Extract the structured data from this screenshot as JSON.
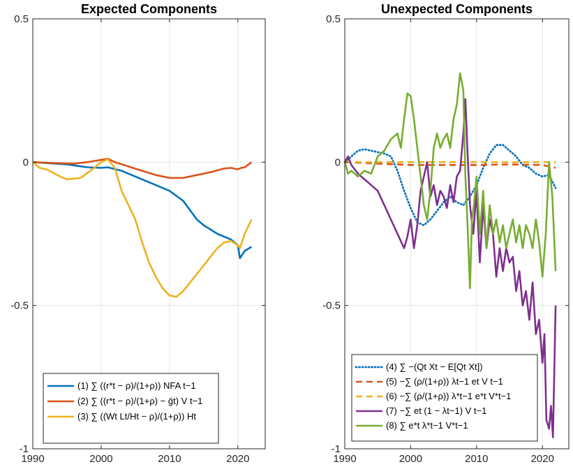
{
  "chart_data": [
    {
      "type": "line",
      "title": "Expected Components",
      "xlabel": "",
      "ylabel": "",
      "xlim": [
        1990,
        2024
      ],
      "ylim": [
        -1,
        0.5
      ],
      "xticks": [
        "1990",
        "2000",
        "2010",
        "2020"
      ],
      "yticks": [
        "0.5",
        "0",
        "-0.5",
        "-1"
      ],
      "grid": true,
      "legend_position": "bottom-left",
      "series": [
        {
          "name": "(1) ∑ ((r*t − ρ)/(1+ρ)) NFA t−1",
          "color": "#0072BD",
          "style": "solid",
          "points": [
            [
              1990,
              0.0
            ],
            [
              1995,
              -0.008
            ],
            [
              1998,
              -0.018
            ],
            [
              2000,
              -0.02
            ],
            [
              2001,
              -0.018
            ],
            [
              2003,
              -0.03
            ],
            [
              2005,
              -0.05
            ],
            [
              2008,
              -0.08
            ],
            [
              2010,
              -0.1
            ],
            [
              2012,
              -0.135
            ],
            [
              2014,
              -0.2
            ],
            [
              2015,
              -0.22
            ],
            [
              2017,
              -0.25
            ],
            [
              2019,
              -0.27
            ],
            [
              2020,
              -0.29
            ],
            [
              2020.3,
              -0.335
            ],
            [
              2021,
              -0.31
            ],
            [
              2022,
              -0.295
            ]
          ]
        },
        {
          "name": "(2) ∑ ((r*t − ρ)/(1+ρ) − ḡt) V t−1",
          "color": "#D95319",
          "style": "solid",
          "points": [
            [
              1990,
              0.0
            ],
            [
              1993,
              -0.003
            ],
            [
              1996,
              -0.005
            ],
            [
              1998,
              0.0
            ],
            [
              2000,
              0.008
            ],
            [
              2001,
              0.012
            ],
            [
              2002,
              0.0
            ],
            [
              2004,
              -0.015
            ],
            [
              2006,
              -0.03
            ],
            [
              2008,
              -0.045
            ],
            [
              2010,
              -0.055
            ],
            [
              2012,
              -0.055
            ],
            [
              2014,
              -0.045
            ],
            [
              2016,
              -0.035
            ],
            [
              2018,
              -0.022
            ],
            [
              2019,
              -0.02
            ],
            [
              2020,
              -0.025
            ],
            [
              2020.5,
              -0.02
            ],
            [
              2021,
              -0.018
            ],
            [
              2022,
              0.0
            ]
          ]
        },
        {
          "name": "(3) ∑ ((Wt Lt/Ht − ρ)/(1+ρ)) Ht",
          "color": "#EDB120",
          "style": "solid",
          "points": [
            [
              1990,
              0.0
            ],
            [
              1991,
              -0.02
            ],
            [
              1992,
              -0.025
            ],
            [
              1994,
              -0.05
            ],
            [
              1995,
              -0.06
            ],
            [
              1997,
              -0.055
            ],
            [
              1999,
              -0.02
            ],
            [
              2000,
              0.0
            ],
            [
              2001,
              0.01
            ],
            [
              2002,
              -0.02
            ],
            [
              2003,
              -0.1
            ],
            [
              2004,
              -0.15
            ],
            [
              2005,
              -0.2
            ],
            [
              2006,
              -0.28
            ],
            [
              2007,
              -0.35
            ],
            [
              2008,
              -0.4
            ],
            [
              2009,
              -0.44
            ],
            [
              2010,
              -0.465
            ],
            [
              2011,
              -0.47
            ],
            [
              2012,
              -0.45
            ],
            [
              2013,
              -0.42
            ],
            [
              2014,
              -0.39
            ],
            [
              2015,
              -0.36
            ],
            [
              2016,
              -0.33
            ],
            [
              2017,
              -0.3
            ],
            [
              2018,
              -0.28
            ],
            [
              2019,
              -0.275
            ],
            [
              2020,
              -0.29
            ],
            [
              2020.3,
              -0.3
            ],
            [
              2021,
              -0.25
            ],
            [
              2022,
              -0.2
            ]
          ]
        }
      ]
    },
    {
      "type": "line",
      "title": "Unexpected Components",
      "xlabel": "",
      "ylabel": "",
      "xlim": [
        1990,
        2024
      ],
      "ylim": [
        -1,
        0.5
      ],
      "xticks": [
        "1990",
        "2000",
        "2010",
        "2020"
      ],
      "yticks": [
        "0.5",
        "0",
        "-0.5",
        "-1"
      ],
      "grid": true,
      "legend_position": "bottom-left",
      "series": [
        {
          "name": "(4) ∑ −(Qt Xt − E[Qt Xt])",
          "color": "#0072BD",
          "style": "dotted",
          "points": [
            [
              1990,
              0.0
            ],
            [
              1992,
              0.04
            ],
            [
              1993,
              0.045
            ],
            [
              1995,
              0.035
            ],
            [
              1996,
              0.03
            ],
            [
              1997,
              0.02
            ],
            [
              1998,
              -0.03
            ],
            [
              1999,
              -0.1
            ],
            [
              2000,
              -0.16
            ],
            [
              2001,
              -0.21
            ],
            [
              2002,
              -0.22
            ],
            [
              2003,
              -0.2
            ],
            [
              2004,
              -0.17
            ],
            [
              2005,
              -0.14
            ],
            [
              2006,
              -0.12
            ],
            [
              2007,
              -0.14
            ],
            [
              2008,
              -0.15
            ],
            [
              2009,
              -0.12
            ],
            [
              2010,
              -0.08
            ],
            [
              2011,
              -0.02
            ],
            [
              2012,
              0.03
            ],
            [
              2013,
              0.06
            ],
            [
              2014,
              0.06
            ],
            [
              2015,
              0.04
            ],
            [
              2016,
              0.02
            ],
            [
              2017,
              -0.01
            ],
            [
              2018,
              -0.02
            ],
            [
              2019,
              -0.04
            ],
            [
              2020,
              -0.05
            ],
            [
              2021,
              -0.045
            ],
            [
              2022,
              -0.09
            ]
          ]
        },
        {
          "name": "(5) −∑ (ρ/(1+ρ)) λt−1 et V t−1",
          "color": "#D95319",
          "style": "dashed",
          "points": [
            [
              1990,
              0.0
            ],
            [
              1995,
              -0.005
            ],
            [
              2000,
              -0.01
            ],
            [
              2005,
              -0.01
            ],
            [
              2010,
              -0.01
            ],
            [
              2015,
              -0.008
            ],
            [
              2020,
              -0.01
            ],
            [
              2022,
              -0.02
            ]
          ]
        },
        {
          "name": "(6) −∑ (ρ/(1+ρ)) λ*t−1 e*t V*t−1",
          "color": "#EDB120",
          "style": "dashed",
          "points": [
            [
              1990,
              0.0
            ],
            [
              1995,
              0.0
            ],
            [
              2000,
              0.0
            ],
            [
              2005,
              0.0
            ],
            [
              2010,
              0.0
            ],
            [
              2015,
              0.0
            ],
            [
              2020,
              0.0
            ],
            [
              2022,
              0.0
            ]
          ]
        },
        {
          "name": "(7) −∑ et (1 − λt−1) V t−1",
          "color": "#7E2F8E",
          "style": "solid",
          "points": [
            [
              1990,
              0.0
            ],
            [
              1990.5,
              0.02
            ],
            [
              1991,
              -0.01
            ],
            [
              1992,
              -0.04
            ],
            [
              1993,
              -0.06
            ],
            [
              1994,
              -0.08
            ],
            [
              1995,
              -0.1
            ],
            [
              1996,
              -0.15
            ],
            [
              1997,
              -0.2
            ],
            [
              1998,
              -0.25
            ],
            [
              1999,
              -0.3
            ],
            [
              1999.5,
              -0.26
            ],
            [
              2000,
              -0.2
            ],
            [
              2000.5,
              -0.3
            ],
            [
              2001,
              -0.22
            ],
            [
              2001.5,
              -0.1
            ],
            [
              2002,
              -0.05
            ],
            [
              2002.5,
              0.0
            ],
            [
              2003,
              -0.12
            ],
            [
              2003.5,
              -0.08
            ],
            [
              2004,
              -0.15
            ],
            [
              2004.5,
              -0.1
            ],
            [
              2005,
              -0.12
            ],
            [
              2005.5,
              -0.16
            ],
            [
              2006,
              -0.08
            ],
            [
              2006.5,
              -0.14
            ],
            [
              2007,
              -0.05
            ],
            [
              2007.5,
              -0.03
            ],
            [
              2008,
              0.1
            ],
            [
              2008.3,
              0.22
            ],
            [
              2008.6,
              0.05
            ],
            [
              2009,
              -0.15
            ],
            [
              2009.5,
              -0.25
            ],
            [
              2010,
              -0.1
            ],
            [
              2010.5,
              -0.35
            ],
            [
              2011,
              -0.15
            ],
            [
              2011.5,
              -0.3
            ],
            [
              2012,
              -0.2
            ],
            [
              2012.5,
              -0.25
            ],
            [
              2013,
              -0.4
            ],
            [
              2013.5,
              -0.3
            ],
            [
              2014,
              -0.38
            ],
            [
              2014.5,
              -0.3
            ],
            [
              2015,
              -0.35
            ],
            [
              2015.5,
              -0.33
            ],
            [
              2016,
              -0.45
            ],
            [
              2016.5,
              -0.38
            ],
            [
              2017,
              -0.5
            ],
            [
              2017.5,
              -0.45
            ],
            [
              2018,
              -0.55
            ],
            [
              2018.5,
              -0.42
            ],
            [
              2019,
              -0.6
            ],
            [
              2019.5,
              -0.55
            ],
            [
              2020,
              -0.7
            ],
            [
              2020.3,
              -0.6
            ],
            [
              2020.6,
              -0.9
            ],
            [
              2021,
              -0.93
            ],
            [
              2021.3,
              -0.85
            ],
            [
              2021.6,
              -0.96
            ],
            [
              2022,
              -0.5
            ]
          ]
        },
        {
          "name": "(8) ∑ e*t λ*t−1 V*t−1",
          "color": "#77AC30",
          "style": "solid",
          "points": [
            [
              1990,
              0.0
            ],
            [
              1990.5,
              -0.04
            ],
            [
              1991,
              -0.03
            ],
            [
              1992,
              -0.05
            ],
            [
              1993,
              -0.03
            ],
            [
              1994,
              -0.04
            ],
            [
              1995,
              0.02
            ],
            [
              1996,
              0.04
            ],
            [
              1997,
              0.08
            ],
            [
              1998,
              0.1
            ],
            [
              1998.5,
              0.05
            ],
            [
              1999,
              0.15
            ],
            [
              1999.5,
              0.24
            ],
            [
              2000,
              0.23
            ],
            [
              2000.5,
              0.15
            ],
            [
              2001,
              0.05
            ],
            [
              2001.5,
              -0.05
            ],
            [
              2002,
              -0.15
            ],
            [
              2002.5,
              -0.2
            ],
            [
              2003,
              -0.1
            ],
            [
              2003.5,
              0.05
            ],
            [
              2004,
              0.1
            ],
            [
              2004.5,
              0.05
            ],
            [
              2005,
              0.08
            ],
            [
              2005.5,
              0.1
            ],
            [
              2006,
              0.05
            ],
            [
              2006.5,
              0.15
            ],
            [
              2007,
              0.2
            ],
            [
              2007.5,
              0.31
            ],
            [
              2008,
              0.25
            ],
            [
              2008.3,
              -0.05
            ],
            [
              2008.6,
              -0.2
            ],
            [
              2009,
              -0.44
            ],
            [
              2009.3,
              -0.2
            ],
            [
              2009.6,
              -0.15
            ],
            [
              2010,
              -0.05
            ],
            [
              2010.5,
              -0.25
            ],
            [
              2011,
              -0.1
            ],
            [
              2011.5,
              -0.3
            ],
            [
              2012,
              -0.15
            ],
            [
              2012.5,
              -0.25
            ],
            [
              2013,
              -0.2
            ],
            [
              2013.5,
              -0.28
            ],
            [
              2014,
              -0.22
            ],
            [
              2014.5,
              -0.3
            ],
            [
              2015,
              -0.25
            ],
            [
              2015.5,
              -0.2
            ],
            [
              2016,
              -0.28
            ],
            [
              2016.5,
              -0.22
            ],
            [
              2017,
              -0.3
            ],
            [
              2017.5,
              -0.22
            ],
            [
              2018,
              -0.25
            ],
            [
              2018.5,
              -0.3
            ],
            [
              2019,
              -0.2
            ],
            [
              2019.5,
              -0.28
            ],
            [
              2020,
              -0.4
            ],
            [
              2020.5,
              -0.25
            ],
            [
              2021,
              0.0
            ],
            [
              2021.5,
              -0.12
            ],
            [
              2022,
              -0.38
            ]
          ]
        }
      ]
    }
  ]
}
